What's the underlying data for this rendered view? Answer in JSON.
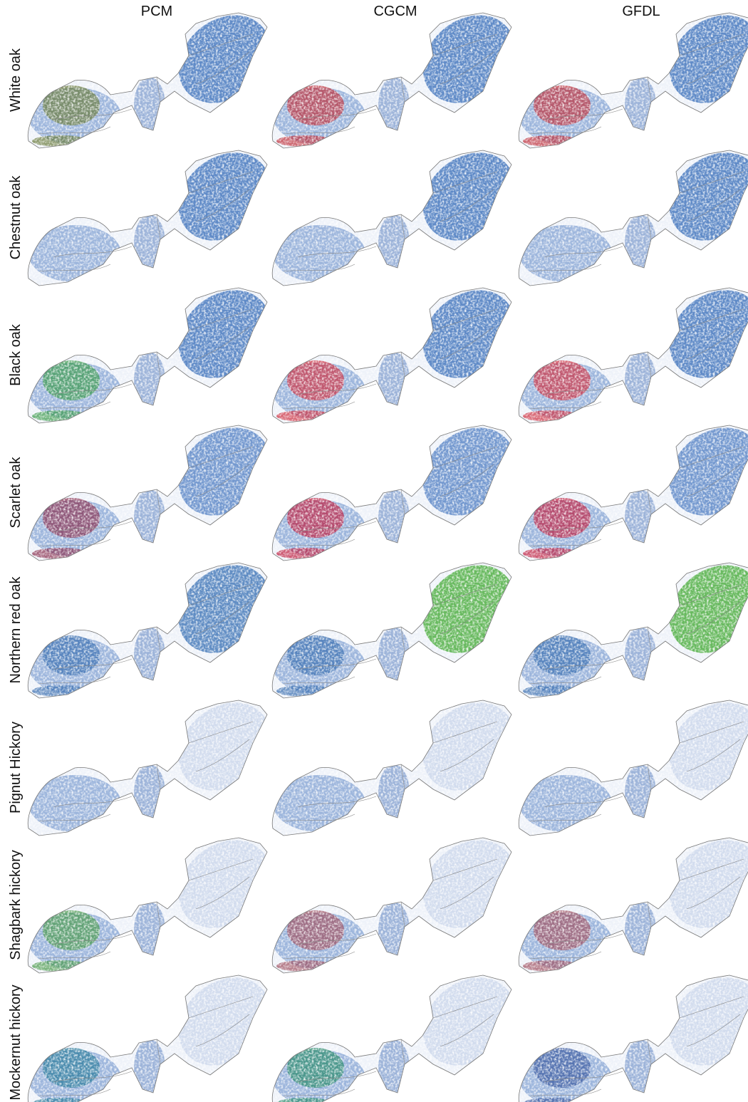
{
  "columns": [
    "PCM",
    "CGCM",
    "GFDL"
  ],
  "rows": [
    "White oak",
    "Chestnut oak",
    "Black oak",
    "Scarlet oak",
    "Northern red oak",
    "Pignut Hickory",
    "Shagbark hickory",
    "Mockernut hickory"
  ]
}
